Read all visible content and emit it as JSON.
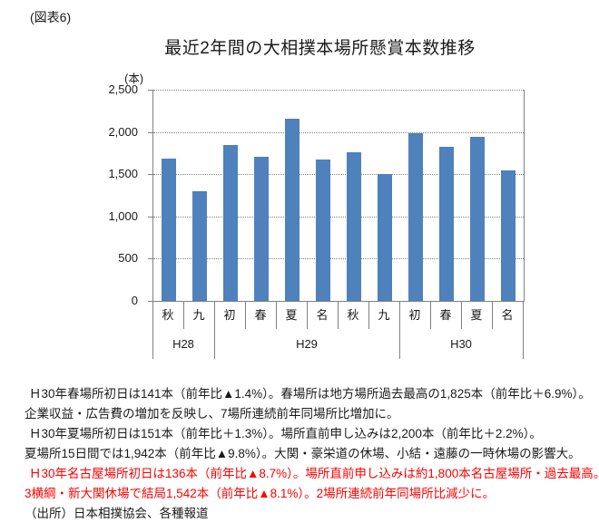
{
  "figure_label": "(図表6)",
  "chart_data": {
    "type": "bar",
    "title": "最近2年間の大相撲本場所懸賞本数推移",
    "unit_label": "(本)",
    "categories": [
      "秋",
      "九",
      "初",
      "春",
      "夏",
      "名",
      "秋",
      "九",
      "初",
      "春",
      "夏",
      "名"
    ],
    "values": [
      1680,
      1300,
      1845,
      1707,
      2153,
      1678,
      1760,
      1500,
      1990,
      1825,
      1942,
      1542
    ],
    "groups": [
      {
        "label": "H28",
        "span": 2
      },
      {
        "label": "H29",
        "span": 6
      },
      {
        "label": "H30",
        "span": 4
      }
    ],
    "ylim": [
      0,
      2500
    ],
    "ytick_interval": 500,
    "yticks": [
      {
        "value": 0,
        "label": "0"
      },
      {
        "value": 500,
        "label": "500"
      },
      {
        "value": 1000,
        "label": "1,000"
      },
      {
        "value": 1500,
        "label": "1,500"
      },
      {
        "value": 2000,
        "label": "2,000"
      },
      {
        "value": 2500,
        "label": "2,500"
      }
    ],
    "bar_color": "#4F81BD",
    "grid": true,
    "legend": "none"
  },
  "notes": {
    "lines": [
      {
        "text": "Ｈ30年春場所初日は141本（前年比▲1.4%）。春場所は地方場所過去最高の1,825本（前年比＋6.9%）。",
        "color": "black",
        "indent": true
      },
      {
        "text": "企業収益・広告費の増加を反映し、7場所連続前年同場所比増加に。",
        "color": "black",
        "indent": false
      },
      {
        "text": "Ｈ30年夏場所初日は151本（前年比＋1.3%）。場所直前申し込みは2,200本（前年比＋2.2%）。",
        "color": "black",
        "indent": true
      },
      {
        "text": "夏場所15日間では1,942本（前年比▲9.8%）。大関・豪栄道の休場、小結・遠藤の一時休場の影響大。",
        "color": "black",
        "indent": false
      },
      {
        "text": "Ｈ30年名古屋場所初日は136本（前年比▲8.7%）。場所直前申し込みは約1,800本名古屋場所・過去最高。",
        "color": "red",
        "indent": true
      },
      {
        "text": "3横綱・新大関休場で結局1,542本（前年比▲8.1%）。2場所連続前年同場所比減少に。",
        "color": "red",
        "indent": false
      },
      {
        "text": "（出所）日本相撲協会、各種報道",
        "color": "black",
        "indent": false
      }
    ]
  }
}
